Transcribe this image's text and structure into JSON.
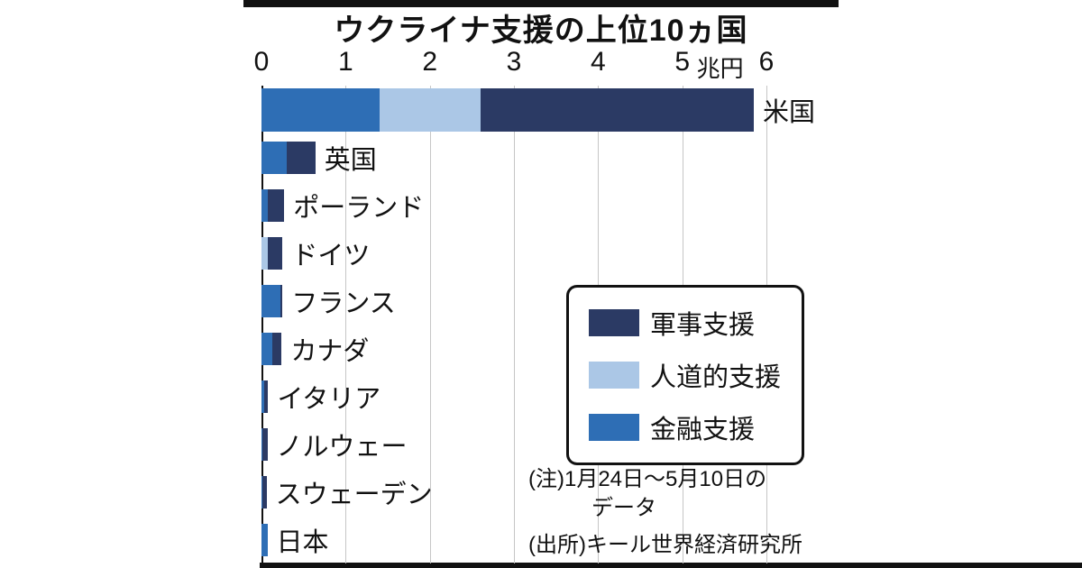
{
  "title": "ウクライナ支援の上位10ヵ国",
  "axis": {
    "ticks": [
      "0",
      "1",
      "2",
      "3",
      "4",
      "5",
      "6"
    ],
    "unit_label": "兆円",
    "max": 6
  },
  "chart_data": {
    "type": "bar",
    "orientation": "horizontal",
    "stacked": true,
    "title": "ウクライナ支援の上位10ヵ国",
    "xlabel": "兆円",
    "xlim": [
      0,
      6
    ],
    "grid": true,
    "categories": [
      "米国",
      "英国",
      "ポーランド",
      "ドイツ",
      "フランス",
      "カナダ",
      "イタリア",
      "ノルウェー",
      "スウェーデン",
      "日本"
    ],
    "series": [
      {
        "name": "金融支援",
        "color": "#2e6eb5",
        "values": [
          1.4,
          0.3,
          0.07,
          0,
          0.22,
          0.13,
          0.03,
          0.01,
          0.01,
          0.07
        ]
      },
      {
        "name": "人道的支援",
        "color": "#abc7e6",
        "values": [
          1.2,
          0,
          0,
          0.07,
          0,
          0,
          0,
          0,
          0,
          0
        ]
      },
      {
        "name": "軍事支援",
        "color": "#2b3a64",
        "values": [
          3.25,
          0.34,
          0.2,
          0.18,
          0.03,
          0.11,
          0.05,
          0.06,
          0.05,
          0
        ]
      }
    ]
  },
  "legend": {
    "items": [
      {
        "label": "軍事支援",
        "color": "#2b3a64"
      },
      {
        "label": "人道的支援",
        "color": "#abc7e6"
      },
      {
        "label": "金融支援",
        "color": "#2e6eb5"
      }
    ]
  },
  "notes": {
    "note_line1": "(注)1月24日〜5月10日の",
    "note_line2": "データ",
    "source": "(出所)キール世界経済研究所"
  },
  "colors": {
    "axis": "#111111",
    "gridline": "#c6c6c6",
    "background": "#ffffff"
  }
}
